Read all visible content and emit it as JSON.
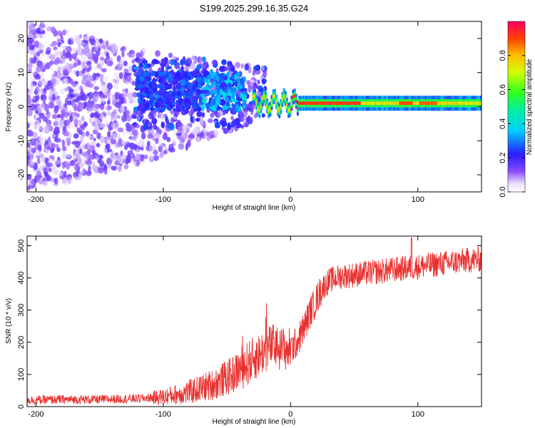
{
  "chart_data": [
    {
      "type": "heatmap",
      "title": "S199.2025.299.16.35.G24",
      "xlabel": "Height of straight line (km)",
      "ylabel": "Frequency (Hz)",
      "xlim": [
        -207,
        150
      ],
      "ylim": [
        -25,
        25
      ],
      "xticks": [
        -200,
        -100,
        0,
        100
      ],
      "xtick_labels": [
        "-200",
        "-100",
        "0",
        "100"
      ],
      "yticks": [
        -20,
        -10,
        0,
        10,
        20
      ],
      "ytick_labels": [
        "-20",
        "-10",
        "0",
        "10",
        "20"
      ],
      "colorbar": {
        "label": "Normalized spectral amplitude",
        "range": [
          0,
          1
        ],
        "ticks": [
          0.0,
          0.2,
          0.4,
          0.6,
          0.8
        ],
        "tick_labels": [
          "0.0",
          "0.2",
          "0.4",
          "0.6",
          "0.8"
        ],
        "colormap": "rainbow"
      },
      "features": {
        "noise_region_km": [
          -207,
          -35
        ],
        "tone_start_km": -30,
        "tone_frequency_hz": 1,
        "tone_peak_amplitude": 0.95
      }
    },
    {
      "type": "line",
      "title": "",
      "xlabel": "Height of straight line (km)",
      "ylabel": "SNR (10 * v/v)",
      "xlim": [
        -207,
        150
      ],
      "ylim": [
        0,
        530
      ],
      "xticks": [
        -200,
        -100,
        0,
        100
      ],
      "xtick_labels": [
        "-200",
        "-100",
        "0",
        "100"
      ],
      "yticks": [
        0,
        100,
        200,
        300,
        400,
        500
      ],
      "ytick_labels": [
        "0",
        "100",
        "200",
        "300",
        "400",
        "500"
      ],
      "series": [
        {
          "name": "SNR",
          "color": "#e8312f",
          "x": [
            -207,
            -180,
            -150,
            -120,
            -100,
            -80,
            -60,
            -45,
            -35,
            -25,
            -15,
            -8,
            0,
            5,
            10,
            15,
            20,
            25,
            30,
            35,
            40,
            50,
            60,
            70,
            80,
            90,
            100,
            110,
            120,
            130,
            140,
            150
          ],
          "y": [
            20,
            22,
            22,
            25,
            30,
            45,
            70,
            100,
            130,
            160,
            190,
            180,
            180,
            200,
            240,
            290,
            330,
            370,
            390,
            400,
            405,
            410,
            415,
            420,
            425,
            430,
            435,
            440,
            445,
            450,
            455,
            458
          ]
        }
      ]
    }
  ],
  "colors": {
    "snr_line": "#e8312f",
    "axis": "#000000"
  }
}
